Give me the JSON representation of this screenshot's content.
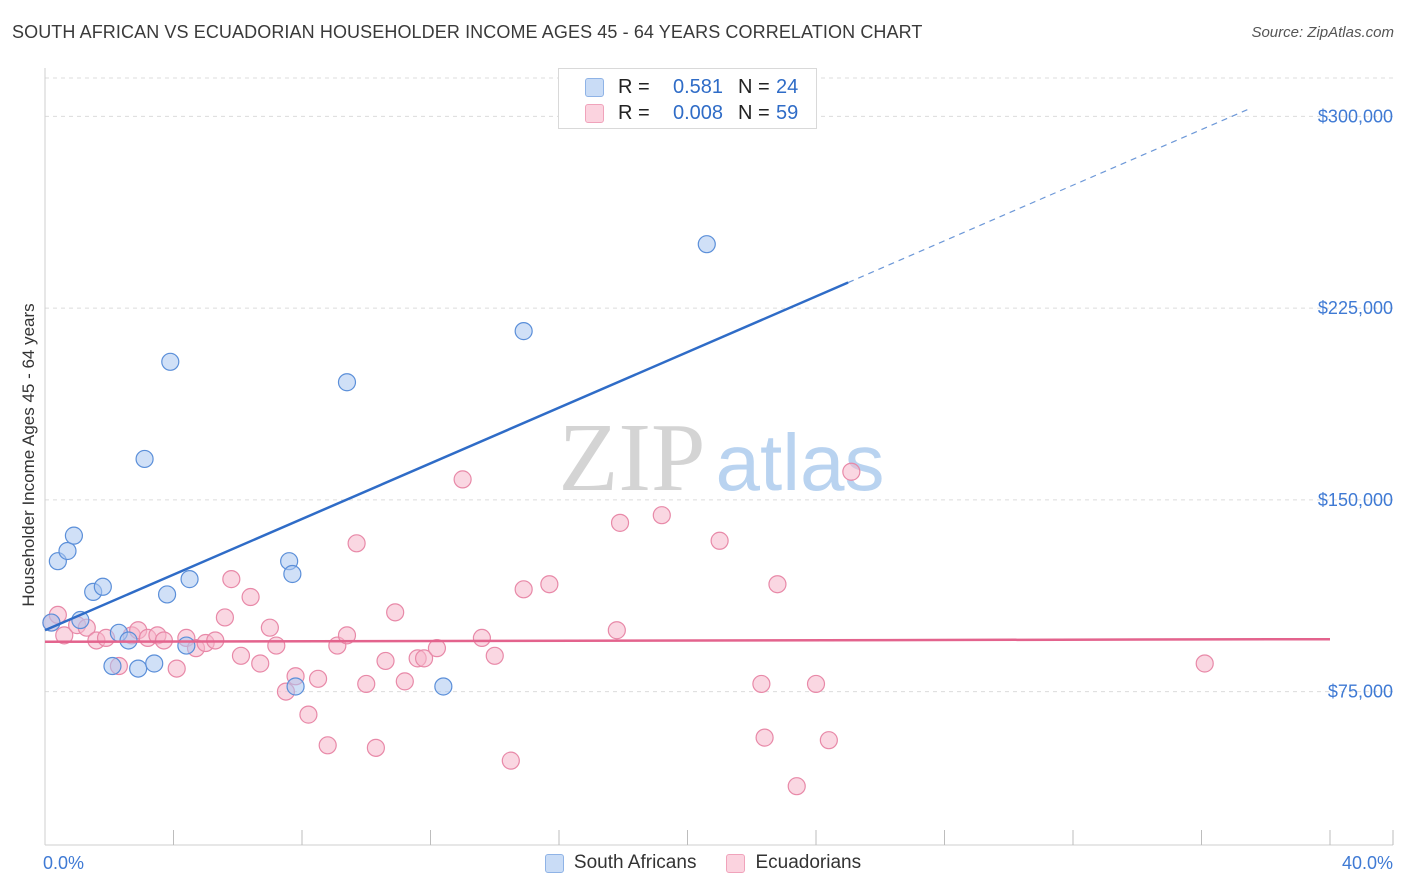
{
  "header": {
    "title": "SOUTH AFRICAN VS ECUADORIAN HOUSEHOLDER INCOME AGES 45 - 64 YEARS CORRELATION CHART",
    "source": "Source: ZipAtlas.com"
  },
  "watermark": {
    "zip": "ZIP",
    "atlas": "atlas"
  },
  "legend_top": {
    "rows": [
      {
        "r_label": "R =",
        "r_value": "0.581",
        "n_label": "N =",
        "n_value": "24",
        "color": "#a9c6f0"
      },
      {
        "r_label": "R =",
        "r_value": "0.008",
        "n_label": "N =",
        "n_value": "59",
        "color": "#f5b7ca"
      }
    ]
  },
  "legend_bottom": {
    "items": [
      {
        "label": "South Africans",
        "color": "#a9c6f0"
      },
      {
        "label": "Ecuadorians",
        "color": "#f5b7ca"
      }
    ]
  },
  "chart_data": {
    "type": "scatter",
    "title": "SOUTH AFRICAN VS ECUADORIAN HOUSEHOLDER INCOME AGES 45 - 64 YEARS CORRELATION CHART",
    "xlabel": "",
    "ylabel": "Householder Income Ages 45 - 64 years",
    "xlim": [
      0,
      40
    ],
    "ylim": [
      15000,
      315000
    ],
    "x_tick_labels": [
      "0.0%",
      "40.0%"
    ],
    "y_ticks": [
      75000,
      150000,
      225000,
      300000
    ],
    "y_tick_labels": [
      "$75,000",
      "$150,000",
      "$225,000",
      "$300,000"
    ],
    "grid": true,
    "series": [
      {
        "name": "South Africans",
        "color": "#a9c6f0",
        "stroke": "#5b8fd9",
        "points": [
          [
            0.2,
            102000
          ],
          [
            0.4,
            126000
          ],
          [
            0.7,
            130000
          ],
          [
            0.9,
            136000
          ],
          [
            1.1,
            103000
          ],
          [
            1.5,
            114000
          ],
          [
            1.8,
            116000
          ],
          [
            2.1,
            85000
          ],
          [
            2.3,
            98000
          ],
          [
            2.6,
            95000
          ],
          [
            2.9,
            84000
          ],
          [
            3.1,
            166000
          ],
          [
            3.4,
            86000
          ],
          [
            3.8,
            113000
          ],
          [
            3.9,
            204000
          ],
          [
            4.4,
            93000
          ],
          [
            4.5,
            119000
          ],
          [
            7.6,
            126000
          ],
          [
            7.7,
            121000
          ],
          [
            7.8,
            77000
          ],
          [
            9.4,
            196000
          ],
          [
            12.4,
            77000
          ],
          [
            14.9,
            216000
          ],
          [
            20.6,
            250000
          ]
        ]
      },
      {
        "name": "Ecuadorians",
        "color": "#f5b7ca",
        "stroke": "#e889a8",
        "points": [
          [
            0.2,
            102000
          ],
          [
            0.4,
            105000
          ],
          [
            0.6,
            97000
          ],
          [
            1.0,
            101000
          ],
          [
            1.3,
            100000
          ],
          [
            1.6,
            95000
          ],
          [
            1.9,
            96000
          ],
          [
            2.3,
            85000
          ],
          [
            2.7,
            97000
          ],
          [
            2.9,
            99000
          ],
          [
            3.2,
            96000
          ],
          [
            3.5,
            97000
          ],
          [
            3.7,
            95000
          ],
          [
            4.1,
            84000
          ],
          [
            4.4,
            96000
          ],
          [
            4.7,
            92000
          ],
          [
            5.0,
            94000
          ],
          [
            5.3,
            95000
          ],
          [
            5.6,
            104000
          ],
          [
            5.8,
            119000
          ],
          [
            6.1,
            89000
          ],
          [
            6.4,
            112000
          ],
          [
            6.7,
            86000
          ],
          [
            7.0,
            100000
          ],
          [
            7.2,
            93000
          ],
          [
            7.5,
            75000
          ],
          [
            7.8,
            81000
          ],
          [
            8.2,
            66000
          ],
          [
            8.5,
            80000
          ],
          [
            8.8,
            54000
          ],
          [
            9.1,
            93000
          ],
          [
            9.4,
            97000
          ],
          [
            9.7,
            133000
          ],
          [
            10.0,
            78000
          ],
          [
            10.3,
            53000
          ],
          [
            10.6,
            87000
          ],
          [
            10.9,
            106000
          ],
          [
            11.2,
            79000
          ],
          [
            11.6,
            88000
          ],
          [
            11.8,
            88000
          ],
          [
            12.2,
            92000
          ],
          [
            13.0,
            158000
          ],
          [
            13.6,
            96000
          ],
          [
            14.0,
            89000
          ],
          [
            14.5,
            48000
          ],
          [
            14.9,
            115000
          ],
          [
            15.7,
            117000
          ],
          [
            17.8,
            99000
          ],
          [
            17.9,
            141000
          ],
          [
            19.2,
            144000
          ],
          [
            21.0,
            134000
          ],
          [
            22.3,
            78000
          ],
          [
            22.4,
            57000
          ],
          [
            22.8,
            117000
          ],
          [
            23.4,
            38000
          ],
          [
            24.0,
            78000
          ],
          [
            24.4,
            56000
          ],
          [
            25.1,
            161000
          ],
          [
            36.1,
            86000
          ]
        ]
      }
    ],
    "trend_lines": [
      {
        "series": "South Africans",
        "color": "#2f6cc7",
        "x0": 0.0,
        "y0": 99000,
        "x1": 25.0,
        "y1": 235000,
        "dash_to_x": 37.5
      },
      {
        "series": "Ecuadorians",
        "color": "#e3638d",
        "x0": 0.0,
        "y0": 94500,
        "x1": 40.0,
        "y1": 95500
      }
    ]
  }
}
